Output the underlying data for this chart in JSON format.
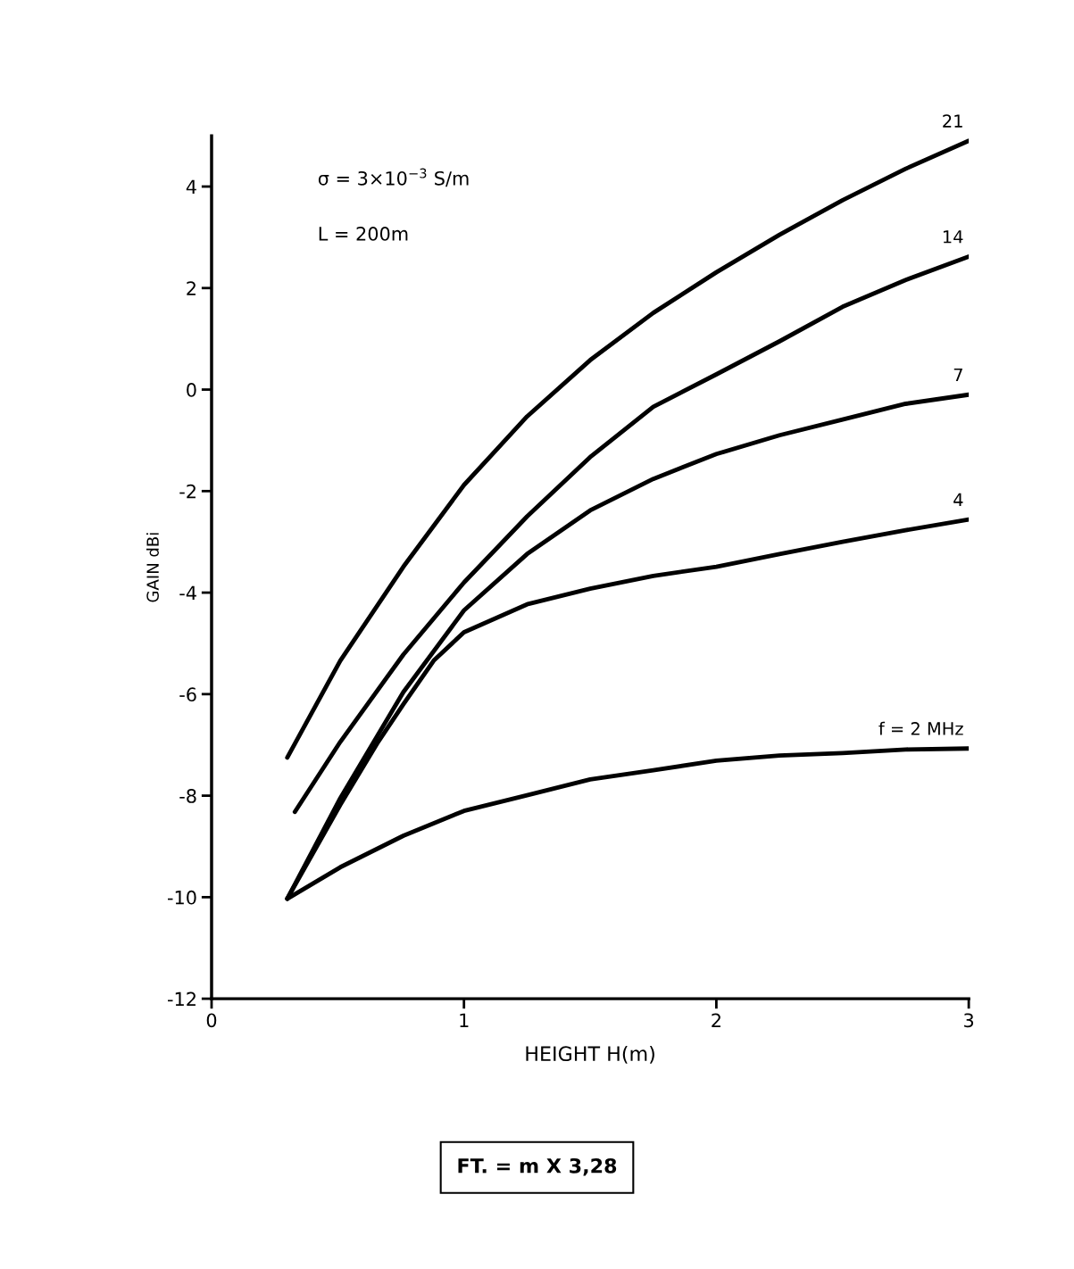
{
  "chart_data": {
    "type": "line",
    "xlabel": "HEIGHT H(m)",
    "ylabel": "GAIN dBi",
    "annotations": [
      "σ = 3×10$^{−3}$ S/m",
      "L = 200m",
      "FT. = m X 3,28"
    ],
    "xlim": [
      0,
      3
    ],
    "ylim": [
      -12,
      5
    ],
    "xticks": [
      0,
      1,
      2,
      3
    ],
    "yticks": [
      -12,
      -10,
      -8,
      -6,
      -4,
      -2,
      0,
      2,
      4
    ],
    "grid": false,
    "legend": false,
    "marker": "none",
    "line_style": "solid",
    "series": [
      {
        "name": "21",
        "color": "#000000",
        "x": [
          0.3,
          0.51,
          0.76,
          1.0,
          1.25,
          1.5,
          1.75,
          2.0,
          2.25,
          2.5,
          2.75,
          3.0
        ],
        "values": [
          -7.25,
          -5.34,
          -3.49,
          -1.88,
          -0.53,
          0.58,
          1.51,
          2.31,
          3.05,
          3.73,
          4.35,
          4.9
        ]
      },
      {
        "name": "14",
        "color": "#000000",
        "x": [
          0.33,
          0.51,
          0.76,
          1.0,
          1.25,
          1.5,
          1.75,
          2.0,
          2.25,
          2.5,
          2.75,
          3.0
        ],
        "values": [
          -8.32,
          -6.94,
          -5.22,
          -3.8,
          -2.5,
          -1.33,
          -0.34,
          0.3,
          0.95,
          1.63,
          2.16,
          2.62
        ]
      },
      {
        "name": "7",
        "color": "#000000",
        "x": [
          0.3,
          0.51,
          0.76,
          1.0,
          1.25,
          1.5,
          1.75,
          2.0,
          2.25,
          2.5,
          2.75,
          3.0
        ],
        "values": [
          -10.03,
          -8.05,
          -5.96,
          -4.35,
          -3.24,
          -2.38,
          -1.76,
          -1.27,
          -0.9,
          -0.59,
          -0.28,
          -0.1
        ]
      },
      {
        "name": "4",
        "color": "#000000",
        "x": [
          0.3,
          0.51,
          0.66,
          0.76,
          0.88,
          1.0,
          1.25,
          1.5,
          1.75,
          2.0,
          2.25,
          2.5,
          2.75,
          3.0
        ],
        "values": [
          -10.03,
          -8.18,
          -6.94,
          -6.2,
          -5.34,
          -4.78,
          -4.23,
          -3.92,
          -3.67,
          -3.49,
          -3.24,
          -3.0,
          -2.77,
          -2.56
        ]
      },
      {
        "name": "f = 2 MHz",
        "color": "#000000",
        "x": [
          0.3,
          0.51,
          0.76,
          1.0,
          1.25,
          1.5,
          1.75,
          2.0,
          2.25,
          2.5,
          2.75,
          3.0
        ],
        "values": [
          -10.03,
          -9.41,
          -8.79,
          -8.3,
          -7.99,
          -7.68,
          -7.5,
          -7.31,
          -7.21,
          -7.16,
          -7.09,
          -7.07
        ]
      }
    ]
  }
}
